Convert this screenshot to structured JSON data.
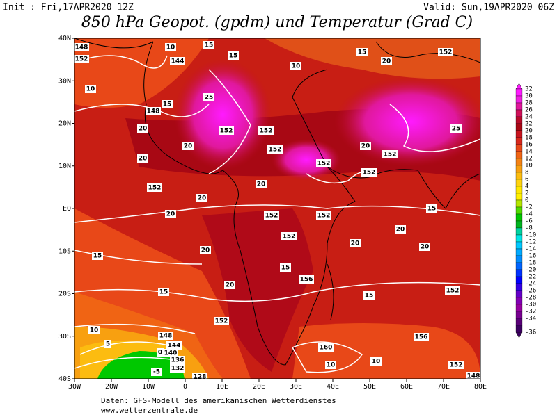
{
  "header": {
    "init": "Init : Fri,17APR2020 12Z",
    "valid": "Valid: Sun,19APR2020 06Z",
    "title": "850 hPa Geopot. (gpdm) und Temperatur (Grad C)"
  },
  "axes": {
    "lat": [
      "40N",
      "30N",
      "20N",
      "10N",
      "EQ",
      "10S",
      "20S",
      "30S",
      "40S"
    ],
    "lon": [
      "30W",
      "20W",
      "10W",
      "0",
      "10E",
      "20E",
      "30E",
      "40E",
      "50E",
      "60E",
      "70E",
      "80E"
    ]
  },
  "colorbar": {
    "labels": [
      32,
      30,
      28,
      26,
      24,
      22,
      20,
      18,
      16,
      14,
      12,
      10,
      8,
      6,
      4,
      2,
      0,
      -2,
      -4,
      -6,
      -8,
      -10,
      -12,
      -14,
      -16,
      -18,
      -20,
      -22,
      -24,
      -26,
      -28,
      -30,
      -32,
      -34,
      -36
    ],
    "colors": [
      "#ff1aff",
      "#f020e0",
      "#e0189c",
      "#d0105a",
      "#b80a28",
      "#a80814",
      "#c8141e",
      "#d8281c",
      "#e84818",
      "#f06414",
      "#f48214",
      "#f8a010",
      "#fcbc10",
      "#ffd410",
      "#ffe800",
      "#fff000",
      "#b4e600",
      "#50dc00",
      "#00c800",
      "#00b41e",
      "#00d2a0",
      "#00e6e6",
      "#00c8ff",
      "#00aaff",
      "#008cff",
      "#0064ff",
      "#0032ff",
      "#0000ff",
      "#3200e6",
      "#6400c8",
      "#8200b4",
      "#9600a0",
      "#780090",
      "#5a0078",
      "#3c0060"
    ]
  },
  "map_labels": [
    "148",
    "152",
    "144",
    "15",
    "10",
    "15",
    "10",
    "15",
    "20",
    "152",
    "10",
    "15",
    "25",
    "148",
    "152",
    "152",
    "20",
    "20",
    "152",
    "152",
    "20",
    "152",
    "25",
    "20",
    "152",
    "20",
    "20",
    "152",
    "20",
    "152",
    "152",
    "20",
    "15",
    "15",
    "20",
    "152",
    "20",
    "20",
    "15",
    "156",
    "15",
    "20",
    "152",
    "15",
    "152",
    "148",
    "144",
    "140",
    "136",
    "132",
    "128",
    "160",
    "156",
    "10",
    "10",
    "152",
    "148",
    "-5",
    "0",
    "5",
    "10"
  ],
  "footer": {
    "source": "Daten: GFS-Modell des amerikanischen Wetterdienstes",
    "site": "www.wetterzentrale.de"
  }
}
